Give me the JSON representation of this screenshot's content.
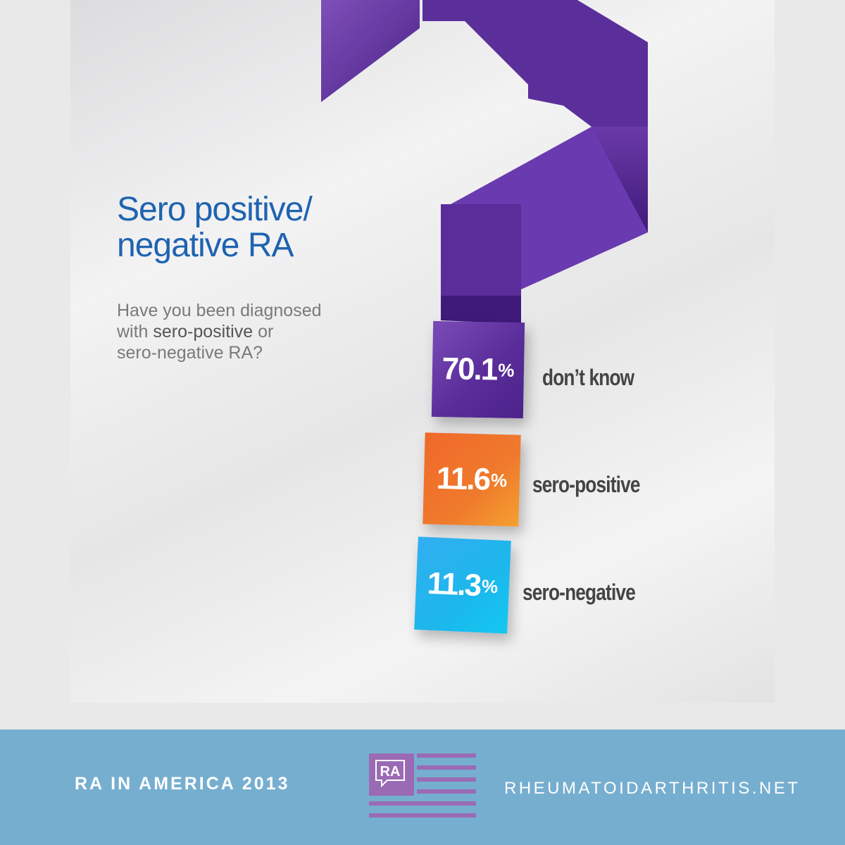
{
  "chart_data": {
    "type": "bar",
    "title": "Sero positive/ negative RA",
    "title_lines": [
      "Sero positive/",
      "negative RA"
    ],
    "question_parts": {
      "line1": "Have you been diagnosed",
      "line2_a": "with ",
      "line2_b": "sero-positive",
      "line2_c": " or",
      "line3": "sero-negative RA?"
    },
    "categories": [
      "don’t know",
      "sero-positive",
      "sero-negative"
    ],
    "values": [
      70.1,
      11.6,
      11.3
    ],
    "unit": "%",
    "value_labels": [
      "70.1",
      "11.6",
      "11.3"
    ],
    "colors": [
      "#5a2d9a",
      "#ef7a2c",
      "#1cb7ec"
    ]
  },
  "footer": {
    "left": "RA IN AMERICA 2013",
    "logo_text": "RA",
    "right": "RHEUMATOIDARTHRITIS.NET",
    "bg_color": "#76aecf",
    "logo_color": "#9b6ab4"
  },
  "icons": {
    "question_mark": "question-mark-icon",
    "logo": "ra-logo-icon"
  }
}
